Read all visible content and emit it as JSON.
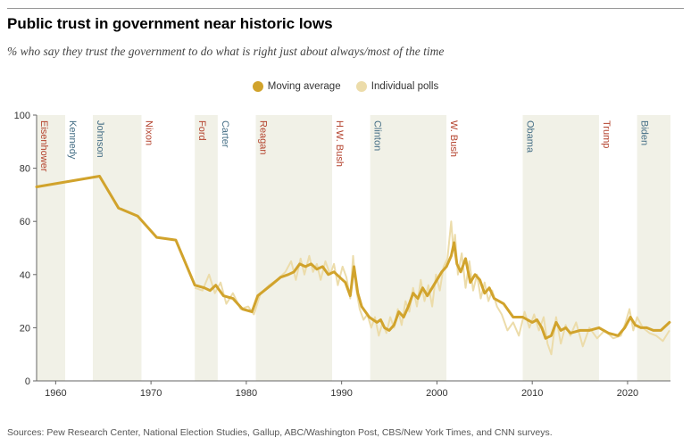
{
  "title": "Public trust in government near historic lows",
  "subtitle": "% who say they trust the government to do what is right just about always/most of the time",
  "legend": {
    "moving_average": "Moving average",
    "individual_polls": "Individual polls"
  },
  "source": "Sources: Pew Research Center, National Election Studies, Gallup, ABC/Washington Post, CBS/New York Times, and CNN surveys.",
  "colors": {
    "moving_average": "#d1a32c",
    "individual_polls": "#ecdcaa",
    "shading": "#f1f1e7",
    "republican": "#b4432e",
    "democrat": "#466f86"
  },
  "chart_data": {
    "type": "line",
    "xlim": [
      1958,
      2024.5
    ],
    "ylim": [
      0,
      100
    ],
    "x_ticks": [
      1960,
      1970,
      1980,
      1990,
      2000,
      2010,
      2020
    ],
    "y_ticks": [
      0,
      20,
      40,
      60,
      80,
      100
    ],
    "presidencies": [
      {
        "name": "Eisenhower",
        "start": 1958,
        "end": 1961,
        "party": "R",
        "shaded": true
      },
      {
        "name": "Kennedy",
        "start": 1961,
        "end": 1963.9,
        "party": "D",
        "shaded": false
      },
      {
        "name": "Johnson",
        "start": 1963.9,
        "end": 1969,
        "party": "D",
        "shaded": true
      },
      {
        "name": "Nixon",
        "start": 1969,
        "end": 1974.6,
        "party": "R",
        "shaded": false
      },
      {
        "name": "Ford",
        "start": 1974.6,
        "end": 1977,
        "party": "R",
        "shaded": true
      },
      {
        "name": "Carter",
        "start": 1977,
        "end": 1981,
        "party": "D",
        "shaded": false
      },
      {
        "name": "Reagan",
        "start": 1981,
        "end": 1989,
        "party": "R",
        "shaded": true
      },
      {
        "name": "H.W. Bush",
        "start": 1989,
        "end": 1993,
        "party": "R",
        "shaded": false
      },
      {
        "name": "Clinton",
        "start": 1993,
        "end": 2001,
        "party": "D",
        "shaded": true
      },
      {
        "name": "W. Bush",
        "start": 2001,
        "end": 2009,
        "party": "R",
        "shaded": false
      },
      {
        "name": "Obama",
        "start": 2009,
        "end": 2017,
        "party": "D",
        "shaded": true
      },
      {
        "name": "Trump",
        "start": 2017,
        "end": 2021,
        "party": "R",
        "shaded": false
      },
      {
        "name": "Biden",
        "start": 2021,
        "end": 2024.5,
        "party": "D",
        "shaded": true
      }
    ],
    "series": [
      {
        "name": "Moving average",
        "x": [
          1958,
          1964.6,
          1966.6,
          1968.6,
          1970.6,
          1972.6,
          1974.6,
          1975.6,
          1976.2,
          1976.8,
          1977.6,
          1978.6,
          1979.6,
          1980.6,
          1981.2,
          1982.6,
          1983.6,
          1984.4,
          1985.0,
          1985.6,
          1986.2,
          1986.8,
          1987.4,
          1988.0,
          1988.6,
          1989.2,
          1989.8,
          1990.4,
          1990.9,
          1991.3,
          1991.7,
          1992.1,
          1992.5,
          1992.9,
          1993.3,
          1993.7,
          1994.1,
          1994.5,
          1995.0,
          1995.5,
          1996.0,
          1996.5,
          1997.0,
          1997.5,
          1998.0,
          1998.5,
          1999.0,
          1999.5,
          2000.0,
          2000.5,
          2001.0,
          2001.5,
          2001.8,
          2002.1,
          2002.5,
          2003.0,
          2003.5,
          2004.0,
          2004.5,
          2005.0,
          2005.5,
          2006.0,
          2007.0,
          2008.0,
          2009.0,
          2009.5,
          2010.0,
          2010.5,
          2011.0,
          2011.4,
          2012.0,
          2012.5,
          2013.0,
          2013.5,
          2014.0,
          2015.0,
          2016.0,
          2017.0,
          2018.0,
          2019.0,
          2019.7,
          2020.3,
          2020.8,
          2021.4,
          2022.0,
          2022.7,
          2023.5,
          2024.4
        ],
        "values": [
          73,
          77,
          65,
          62,
          54,
          53,
          36,
          35,
          34,
          36,
          32,
          31,
          27,
          26,
          32,
          36,
          39,
          40,
          41,
          44,
          43,
          44,
          42,
          43,
          40,
          41,
          39,
          37,
          32,
          43,
          33,
          28,
          26,
          24,
          23,
          22,
          23,
          20,
          19,
          21,
          26,
          24,
          28,
          33,
          31,
          35,
          32,
          35,
          38,
          41,
          43,
          47,
          52,
          44,
          41,
          46,
          37,
          40,
          38,
          33,
          35,
          31,
          29,
          24,
          24,
          23,
          22,
          23,
          20,
          16,
          17,
          22,
          19,
          20,
          18,
          19,
          19,
          20,
          18,
          17,
          20,
          24,
          21,
          20,
          20,
          19,
          19,
          22
        ]
      },
      {
        "name": "Individual polls",
        "x": [
          1974.6,
          1975.4,
          1976.1,
          1976.7,
          1977.3,
          1977.9,
          1978.6,
          1979.4,
          1980.2,
          1980.8,
          1981.5,
          1982.4,
          1983.2,
          1984.1,
          1984.7,
          1985.2,
          1985.7,
          1986.1,
          1986.6,
          1987.0,
          1987.4,
          1987.8,
          1988.3,
          1988.8,
          1989.2,
          1989.6,
          1990.1,
          1990.5,
          1990.9,
          1991.2,
          1991.5,
          1991.9,
          1992.3,
          1992.7,
          1993.1,
          1993.5,
          1993.9,
          1994.3,
          1994.7,
          1995.1,
          1995.5,
          1995.9,
          1996.3,
          1996.7,
          1997.1,
          1997.5,
          1997.9,
          1998.3,
          1998.7,
          1999.1,
          1999.5,
          1999.9,
          2000.3,
          2000.7,
          2001.1,
          2001.5,
          2001.7,
          2001.9,
          2002.2,
          2002.6,
          2003.0,
          2003.4,
          2003.8,
          2004.2,
          2004.6,
          2005.0,
          2005.4,
          2005.8,
          2006.3,
          2006.8,
          2007.4,
          2008.0,
          2008.6,
          2009.2,
          2009.7,
          2010.2,
          2010.7,
          2011.2,
          2011.6,
          2012.0,
          2012.5,
          2013.0,
          2013.5,
          2014.0,
          2014.6,
          2015.3,
          2016.0,
          2016.8,
          2017.6,
          2018.5,
          2019.3,
          2019.8,
          2020.2,
          2020.6,
          2021.0,
          2021.6,
          2022.3,
          2023.0,
          2023.7,
          2024.4
        ],
        "values": [
          35,
          34,
          40,
          33,
          37,
          29,
          33,
          27,
          28,
          25,
          33,
          36,
          38,
          41,
          45,
          38,
          46,
          40,
          47,
          41,
          44,
          38,
          45,
          40,
          44,
          36,
          43,
          39,
          31,
          47,
          35,
          27,
          23,
          25,
          20,
          24,
          17,
          22,
          18,
          24,
          20,
          27,
          21,
          30,
          26,
          35,
          28,
          38,
          30,
          36,
          28,
          40,
          34,
          43,
          46,
          60,
          50,
          55,
          40,
          48,
          35,
          45,
          34,
          40,
          31,
          37,
          30,
          34,
          28,
          25,
          19,
          22,
          17,
          26,
          20,
          25,
          19,
          24,
          14,
          10,
          24,
          14,
          21,
          17,
          22,
          13,
          20,
          16,
          19,
          16,
          17,
          22,
          27,
          19,
          24,
          20,
          18,
          17,
          15,
          19
        ]
      }
    ]
  }
}
